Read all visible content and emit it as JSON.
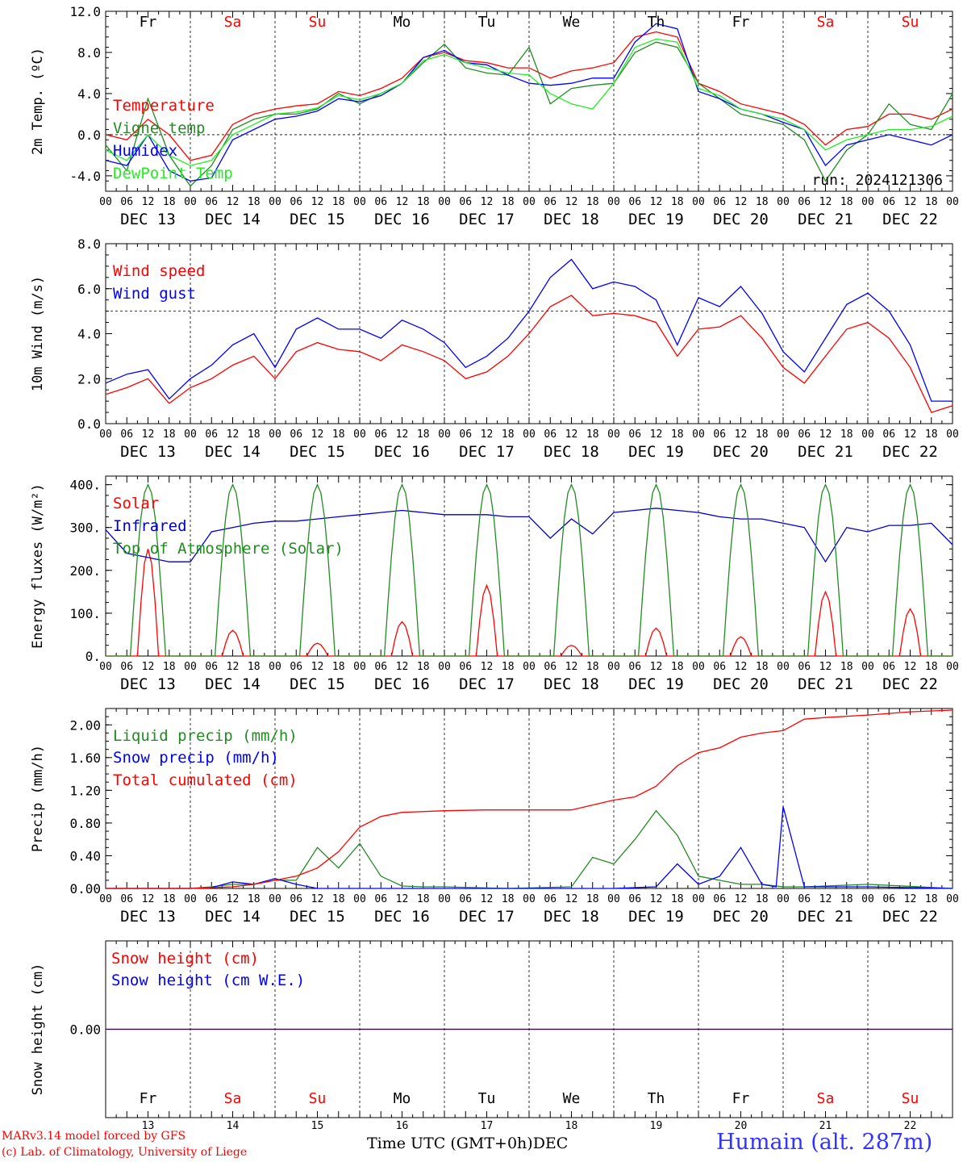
{
  "run_label": "run: 2024121306",
  "x_hour_ticks": [
    "00",
    "06",
    "12",
    "18"
  ],
  "x_last_tick": "00",
  "dates": [
    "DEC 13",
    "DEC 14",
    "DEC 15",
    "DEC 16",
    "DEC 17",
    "DEC 18",
    "DEC 19",
    "DEC 20",
    "DEC 21",
    "DEC 22"
  ],
  "bottom_days": [
    "13",
    "14",
    "15",
    "16",
    "17",
    "18",
    "19",
    "20",
    "21",
    "22"
  ],
  "day_names": [
    {
      "label": "Fr",
      "color": "#000000"
    },
    {
      "label": "Sa",
      "color": "#ff0000"
    },
    {
      "label": "Su",
      "color": "#ff0000"
    },
    {
      "label": "Mo",
      "color": "#000000"
    },
    {
      "label": "Tu",
      "color": "#000000"
    },
    {
      "label": "We",
      "color": "#000000"
    },
    {
      "label": "Th",
      "color": "#000000"
    },
    {
      "label": "Fr",
      "color": "#000000"
    },
    {
      "label": "Sa",
      "color": "#ff0000"
    },
    {
      "label": "Su",
      "color": "#ff0000"
    }
  ],
  "footer": {
    "model": "MARv3.14 model forced by GFS",
    "lab": "(c) Lab. of Climatology, University of Liege",
    "axis_title": "Time UTC (GMT+0h)",
    "month": "DEC",
    "station": "Humain (alt. 287m)"
  },
  "chart_data": [
    {
      "type": "line",
      "ylabel": "2m Temp. (ºC)",
      "ylim": [
        -5.5,
        12.0
      ],
      "yticks": [
        12.0,
        8.0,
        4.0,
        0.0,
        -4.0
      ],
      "ytick_labels": [
        "12.0",
        "8.0",
        "4.0",
        "0.0",
        "-4.0"
      ],
      "reference_line": 0.0,
      "x": [
        0,
        6,
        12,
        18,
        24,
        30,
        36,
        42,
        48,
        54,
        60,
        66,
        72,
        78,
        84,
        90,
        96,
        102,
        108,
        114,
        120,
        126,
        132,
        138,
        144,
        150,
        156,
        162,
        168,
        174,
        180,
        186,
        192,
        198,
        204,
        210,
        216,
        222,
        228,
        234,
        240
      ],
      "series": [
        {
          "name": "Temperature",
          "color": "#ff0000",
          "values": [
            0.0,
            -0.5,
            1.5,
            0.0,
            -2.5,
            -2.0,
            1.0,
            2.0,
            2.5,
            2.8,
            3.0,
            4.2,
            3.8,
            4.5,
            5.5,
            7.5,
            8.0,
            7.2,
            7.0,
            6.5,
            6.5,
            5.5,
            6.2,
            6.5,
            7.0,
            9.5,
            10.0,
            9.5,
            5.0,
            4.2,
            3.0,
            2.5,
            2.0,
            1.0,
            -1.0,
            0.5,
            0.8,
            2.0,
            2.0,
            1.5,
            2.5
          ]
        },
        {
          "name": "Vigne temp",
          "color": "#228b22",
          "values": [
            -1.0,
            -3.5,
            3.5,
            -2.0,
            -5.0,
            -3.0,
            0.5,
            1.5,
            2.0,
            2.0,
            2.5,
            4.0,
            3.0,
            4.0,
            5.0,
            7.0,
            8.8,
            6.5,
            6.0,
            5.8,
            8.5,
            3.0,
            4.5,
            4.8,
            5.0,
            8.0,
            9.0,
            8.5,
            5.0,
            3.5,
            2.0,
            1.5,
            1.0,
            -0.5,
            -4.5,
            -1.5,
            0.0,
            3.0,
            1.0,
            0.5,
            4.0
          ]
        },
        {
          "name": "Humidex",
          "color": "#0000ff",
          "values": [
            -2.5,
            -3.0,
            0.0,
            -3.5,
            -4.5,
            -4.2,
            -0.5,
            0.5,
            1.5,
            1.8,
            2.3,
            3.5,
            3.2,
            3.8,
            5.0,
            7.5,
            8.2,
            7.0,
            6.8,
            5.8,
            5.0,
            4.8,
            5.0,
            5.5,
            5.5,
            9.0,
            10.8,
            10.3,
            4.2,
            3.5,
            2.5,
            2.0,
            1.2,
            0.5,
            -3.0,
            -1.0,
            -0.5,
            0.0,
            -0.5,
            -1.0,
            0.0
          ]
        },
        {
          "name": "DewPoint Temp",
          "color": "#22ee22",
          "values": [
            -1.5,
            -2.5,
            0.0,
            -2.0,
            -3.0,
            -2.5,
            0.0,
            1.0,
            2.0,
            2.2,
            2.6,
            3.8,
            3.4,
            4.0,
            5.0,
            7.2,
            7.8,
            7.0,
            6.5,
            6.0,
            5.8,
            4.0,
            3.0,
            2.5,
            5.0,
            8.5,
            9.3,
            9.0,
            4.5,
            3.8,
            2.5,
            2.0,
            1.5,
            0.5,
            -1.5,
            -0.5,
            0.0,
            0.5,
            0.5,
            0.8,
            1.8
          ]
        }
      ]
    },
    {
      "type": "line",
      "ylabel": "10m Wind (m/s)",
      "ylim": [
        0.0,
        8.0
      ],
      "yticks": [
        8.0,
        6.0,
        4.0,
        2.0,
        0.0
      ],
      "ytick_labels": [
        "8.0",
        "6.0",
        "4.0",
        "2.0",
        "0.0"
      ],
      "reference_line": 5.0,
      "x": [
        0,
        6,
        12,
        18,
        24,
        30,
        36,
        42,
        48,
        54,
        60,
        66,
        72,
        78,
        84,
        90,
        96,
        102,
        108,
        114,
        120,
        126,
        132,
        138,
        144,
        150,
        156,
        162,
        168,
        174,
        180,
        186,
        192,
        198,
        204,
        210,
        216,
        222,
        228,
        234,
        240
      ],
      "series": [
        {
          "name": "Wind speed",
          "color": "#ff0000",
          "values": [
            1.3,
            1.6,
            2.0,
            0.9,
            1.6,
            2.0,
            2.6,
            3.0,
            2.0,
            3.2,
            3.6,
            3.3,
            3.2,
            2.8,
            3.5,
            3.2,
            2.8,
            2.0,
            2.3,
            3.0,
            4.0,
            5.2,
            5.7,
            4.8,
            4.9,
            4.8,
            4.5,
            3.0,
            4.2,
            4.3,
            4.8,
            3.8,
            2.5,
            1.8,
            3.0,
            4.2,
            4.5,
            3.8,
            2.5,
            0.5,
            0.8
          ]
        },
        {
          "name": "Wind gust",
          "color": "#0000ff",
          "values": [
            1.8,
            2.2,
            2.4,
            1.1,
            2.0,
            2.6,
            3.5,
            4.0,
            2.5,
            4.2,
            4.7,
            4.2,
            4.2,
            3.8,
            4.6,
            4.2,
            3.6,
            2.5,
            3.0,
            3.8,
            5.0,
            6.5,
            7.3,
            6.0,
            6.3,
            6.1,
            5.5,
            3.5,
            5.6,
            5.2,
            6.1,
            4.9,
            3.2,
            2.3,
            3.8,
            5.3,
            5.8,
            5.0,
            3.5,
            1.0,
            1.0
          ]
        }
      ]
    },
    {
      "type": "line",
      "ylabel": "Energy fluxes (W/m²)",
      "ylim": [
        0,
        420
      ],
      "yticks": [
        400,
        300,
        200,
        100,
        0
      ],
      "ytick_labels": [
        "400.",
        "300.",
        "200.",
        "100.",
        "0."
      ],
      "series": [
        {
          "name": "Solar",
          "color": "#ff0000",
          "peak_hour": 12,
          "daily_peaks": [
            250,
            60,
            30,
            80,
            165,
            25,
            65,
            45,
            150,
            110
          ]
        },
        {
          "name": "Infrared",
          "color": "#0000cc",
          "x": [
            0,
            6,
            12,
            18,
            24,
            30,
            36,
            42,
            48,
            54,
            60,
            66,
            72,
            78,
            84,
            90,
            96,
            102,
            108,
            114,
            120,
            126,
            132,
            138,
            144,
            150,
            156,
            162,
            168,
            174,
            180,
            186,
            192,
            198,
            204,
            210,
            216,
            222,
            228,
            234,
            240
          ],
          "values": [
            295,
            240,
            230,
            220,
            220,
            290,
            300,
            310,
            315,
            315,
            320,
            325,
            330,
            335,
            340,
            335,
            330,
            330,
            330,
            325,
            325,
            275,
            320,
            285,
            335,
            340,
            345,
            340,
            335,
            325,
            320,
            320,
            310,
            300,
            220,
            300,
            290,
            305,
            305,
            310,
            260
          ]
        },
        {
          "name": "Top of Atmosphere (Solar)",
          "color": "#228b22",
          "peak_hour": 12,
          "daily_peaks": [
            400,
            400,
            400,
            400,
            400,
            400,
            400,
            400,
            400,
            400
          ]
        }
      ]
    },
    {
      "type": "line",
      "ylabel": "Precip (mm/h)",
      "ylim": [
        0.0,
        2.2
      ],
      "yticks": [
        2.0,
        1.6,
        1.2,
        0.8,
        0.4,
        0.0
      ],
      "ytick_labels": [
        "2.00",
        "1.60",
        "1.20",
        "0.80",
        "0.40",
        "0.00"
      ],
      "series": [
        {
          "name": "Liquid precip (mm/h)",
          "color": "#228b22",
          "x": [
            0,
            24,
            30,
            36,
            42,
            48,
            54,
            60,
            66,
            72,
            78,
            84,
            90,
            96,
            114,
            132,
            138,
            144,
            150,
            156,
            162,
            168,
            174,
            180,
            186,
            192,
            198,
            216,
            240
          ],
          "values": [
            0,
            0,
            0.02,
            0.05,
            0.05,
            0.1,
            0.1,
            0.5,
            0.25,
            0.55,
            0.15,
            0.03,
            0.02,
            0.02,
            0,
            0.02,
            0.38,
            0.3,
            0.6,
            0.95,
            0.65,
            0.15,
            0.1,
            0.05,
            0.05,
            0.02,
            0.02,
            0.05,
            0
          ]
        },
        {
          "name": "Snow precip (mm/h)",
          "color": "#0000ff",
          "x": [
            0,
            24,
            30,
            36,
            42,
            48,
            54,
            60,
            144,
            156,
            162,
            168,
            174,
            180,
            186,
            190,
            192,
            198,
            216,
            240
          ],
          "values": [
            0,
            0,
            0.01,
            0.08,
            0.05,
            0.12,
            0.05,
            0,
            0,
            0.02,
            0.3,
            0.05,
            0.15,
            0.5,
            0.05,
            0.02,
            1.0,
            0.02,
            0.02,
            0
          ]
        },
        {
          "name": "Total cumulated (cm)",
          "color": "#ff0000",
          "x": [
            0,
            24,
            30,
            36,
            42,
            48,
            54,
            60,
            66,
            72,
            78,
            84,
            96,
            108,
            120,
            132,
            138,
            144,
            150,
            156,
            162,
            168,
            174,
            180,
            186,
            192,
            198,
            204,
            216,
            228,
            240
          ],
          "values": [
            0,
            0,
            0.01,
            0.02,
            0.05,
            0.1,
            0.15,
            0.25,
            0.45,
            0.75,
            0.88,
            0.93,
            0.95,
            0.96,
            0.96,
            0.96,
            1.02,
            1.08,
            1.12,
            1.25,
            1.5,
            1.66,
            1.72,
            1.85,
            1.9,
            1.93,
            2.07,
            2.09,
            2.12,
            2.16,
            2.18
          ]
        }
      ]
    },
    {
      "type": "line",
      "ylabel": "Snow height (cm)",
      "ylim": [
        -1.0,
        1.0
      ],
      "yticks": [
        0.0
      ],
      "ytick_labels": [
        "0.00"
      ],
      "series": [
        {
          "name": "Snow height (cm)",
          "color": "#ff0000",
          "x": [
            0,
            240
          ],
          "values": [
            0,
            0
          ]
        },
        {
          "name": "Snow height (cm W.E.)",
          "color": "#0000ff",
          "x": [
            0,
            240
          ],
          "values": [
            0,
            0
          ]
        }
      ]
    }
  ]
}
